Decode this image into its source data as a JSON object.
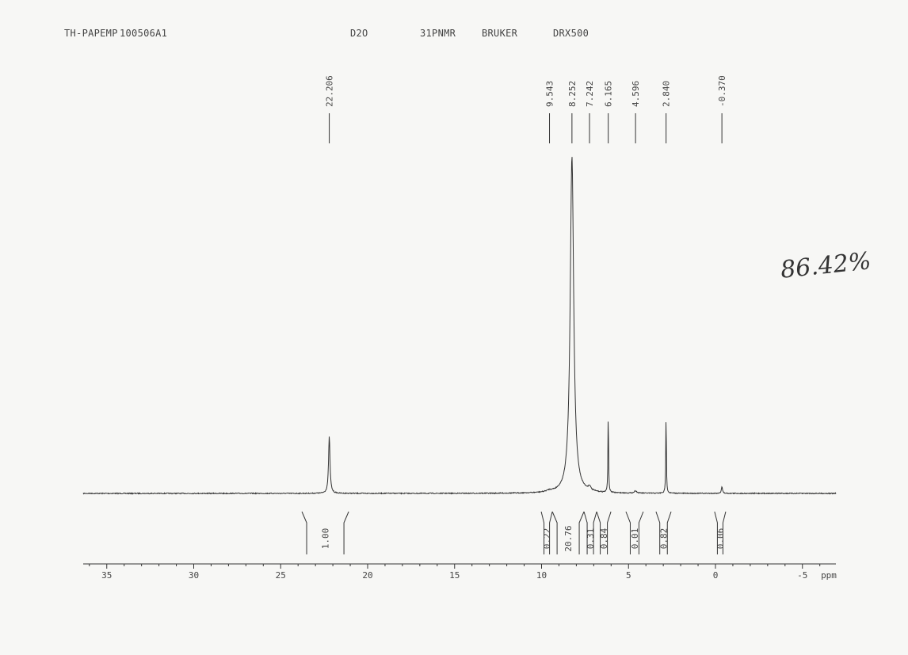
{
  "header": {
    "sample": "TH-PAPEMP",
    "experiment_id": "100506A1",
    "solvent": "D2O",
    "nucleus": "31PNMR",
    "manufacturer": "BRUKER",
    "instrument": "DRX500"
  },
  "handwritten_note": "86.42%",
  "chart_data": {
    "type": "line",
    "title": "",
    "xlabel": "ppm",
    "ylabel": "",
    "xlim": [
      36.4,
      -6.9
    ],
    "x_reversed": true,
    "x_ticks": [
      35,
      30,
      25,
      20,
      15,
      10,
      5,
      0,
      -5
    ],
    "x_tick_labels": [
      "35",
      "30",
      "25",
      "20",
      "15",
      "10",
      "5",
      "0",
      "-5"
    ],
    "grid": false,
    "peaks": [
      {
        "ppm": 22.206,
        "label": "22.206",
        "relative_intensity": 17,
        "width": 0.05
      },
      {
        "ppm": 9.543,
        "label": "9.543",
        "relative_intensity": 0.4,
        "width": 0.2
      },
      {
        "ppm": 8.252,
        "label": "8.252",
        "relative_intensity": 100,
        "width": 0.12
      },
      {
        "ppm": 7.242,
        "label": "7.242",
        "relative_intensity": 1.2,
        "width": 0.08
      },
      {
        "ppm": 6.165,
        "label": "6.165",
        "relative_intensity": 24.4,
        "width": 0.02
      },
      {
        "ppm": 4.596,
        "label": "4.596",
        "relative_intensity": 0.7,
        "width": 0.08
      },
      {
        "ppm": 2.84,
        "label": "2.840",
        "relative_intensity": 24,
        "width": 0.02
      },
      {
        "ppm": -0.37,
        "label": "-0.370",
        "relative_intensity": 2,
        "width": 0.04
      }
    ],
    "integrals": [
      {
        "from": 23.78,
        "to": 21.09,
        "value": "1.00"
      },
      {
        "from": 10.02,
        "to": 9.38,
        "value": "0.22"
      },
      {
        "from": 9.38,
        "to": 7.56,
        "value": "20.76"
      },
      {
        "from": 7.56,
        "to": 6.83,
        "value": "0.31"
      },
      {
        "from": 6.83,
        "to": 6.01,
        "value": "0.84"
      },
      {
        "from": 5.15,
        "to": 4.15,
        "value": "0.01"
      },
      {
        "from": 3.42,
        "to": 2.55,
        "value": "0.82"
      },
      {
        "from": 0.05,
        "to": -0.59,
        "value": "0.06"
      }
    ]
  }
}
